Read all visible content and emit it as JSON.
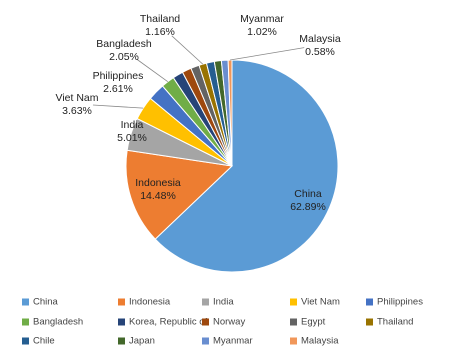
{
  "chart_data": {
    "type": "pie",
    "categories": [
      "China",
      "Indonesia",
      "India",
      "Viet Nam",
      "Philippines",
      "Bangladesh",
      "Korea, Republic of",
      "Norway",
      "Egypt",
      "Thailand",
      "Chile",
      "Japan",
      "Myanmar",
      "Malaysia"
    ],
    "values": [
      62.89,
      14.48,
      5.01,
      3.63,
      2.61,
      2.05,
      1.6,
      1.4,
      1.3,
      1.16,
      1.2,
      1.07,
      1.02,
      0.58
    ],
    "value_labels": [
      "62.89%",
      "14.48%",
      "5.01%",
      "3.63%",
      "2.61%",
      "2.05%",
      null,
      null,
      null,
      "1.16%",
      null,
      null,
      "1.02%",
      "0.58%"
    ],
    "colors": [
      "#5b9bd5",
      "#ed7d31",
      "#a5a5a5",
      "#ffc000",
      "#4472c4",
      "#70ad47",
      "#264478",
      "#9e480e",
      "#636363",
      "#997300",
      "#255e91",
      "#43682b",
      "#698ed0",
      "#f1975a"
    ],
    "legend": "bottom"
  }
}
